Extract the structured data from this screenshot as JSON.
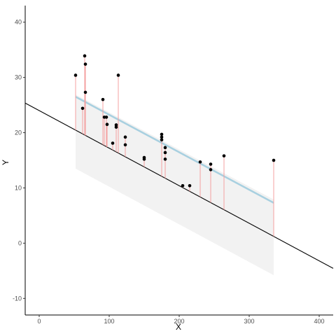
{
  "chart_data": {
    "type": "scatter",
    "title": "",
    "xlabel": "X",
    "ylabel": "Y",
    "xlim": [
      -20,
      420
    ],
    "ylim": [
      -13,
      43
    ],
    "x_ticks": [
      0,
      100,
      200,
      300,
      400
    ],
    "y_ticks": [
      -10,
      0,
      10,
      20,
      30,
      40
    ],
    "grid": false,
    "legend": "none",
    "colors": {
      "points": "#000000",
      "residuals": "#f4a0a0",
      "fit_line": "#a8d0e0",
      "ribbon": "#e8e8e8",
      "reference_line": "#000000",
      "axis": "#000000"
    },
    "points": [
      {
        "x": 52,
        "y": 30.4
      },
      {
        "x": 62,
        "y": 24.4
      },
      {
        "x": 65,
        "y": 33.9
      },
      {
        "x": 66,
        "y": 32.4
      },
      {
        "x": 66,
        "y": 27.3
      },
      {
        "x": 91,
        "y": 26.0
      },
      {
        "x": 93,
        "y": 22.8
      },
      {
        "x": 96,
        "y": 22.8
      },
      {
        "x": 97,
        "y": 21.5
      },
      {
        "x": 105,
        "y": 18.1
      },
      {
        "x": 110,
        "y": 21.4
      },
      {
        "x": 110,
        "y": 21.0
      },
      {
        "x": 113,
        "y": 30.4
      },
      {
        "x": 123,
        "y": 19.2
      },
      {
        "x": 123,
        "y": 17.8
      },
      {
        "x": 150,
        "y": 15.5
      },
      {
        "x": 150,
        "y": 15.2
      },
      {
        "x": 175,
        "y": 19.7
      },
      {
        "x": 175,
        "y": 19.2
      },
      {
        "x": 175,
        "y": 18.7
      },
      {
        "x": 180,
        "y": 17.3
      },
      {
        "x": 180,
        "y": 16.4
      },
      {
        "x": 180,
        "y": 15.2
      },
      {
        "x": 205,
        "y": 10.4
      },
      {
        "x": 215,
        "y": 10.4
      },
      {
        "x": 230,
        "y": 14.7
      },
      {
        "x": 245,
        "y": 14.3
      },
      {
        "x": 245,
        "y": 13.3
      },
      {
        "x": 264,
        "y": 15.8
      },
      {
        "x": 335,
        "y": 15.0
      }
    ],
    "reference_line": {
      "intercept": 24.0,
      "slope": -0.068
    },
    "fit_line": {
      "x_range": [
        52,
        335
      ],
      "y_start": 26.5,
      "y_end": 7.3
    },
    "ribbon": {
      "x_range": [
        52,
        335
      ],
      "lower_start": 13.5,
      "lower_end": -5.8
    }
  }
}
